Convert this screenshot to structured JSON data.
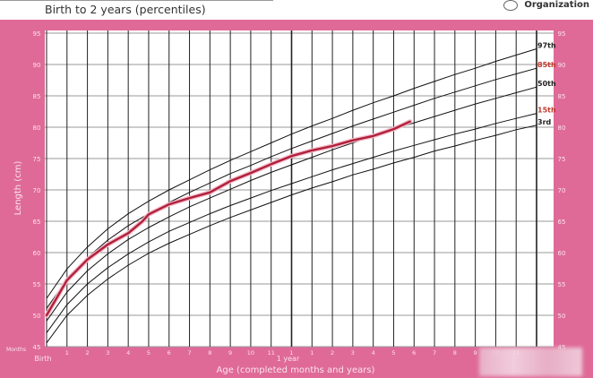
{
  "header": {
    "title": "Birth to 2 years (percentiles)",
    "organization": "Organization"
  },
  "colors": {
    "frame": "#df6a98",
    "child_line": "#b0203a",
    "percentile_line": "#111111",
    "grid_major": "#222222",
    "grid_minor": "#9a9a9a"
  },
  "chart_data": {
    "type": "line",
    "title": "Birth to 2 years (percentiles)",
    "xlabel": "Age (completed months and years)",
    "ylabel": "Length (cm)",
    "xlim": [
      0,
      24
    ],
    "ylim": [
      45,
      95
    ],
    "yticks": [
      45,
      50,
      55,
      60,
      65,
      70,
      75,
      80,
      85,
      90,
      95
    ],
    "xtick_row_label": "Months",
    "xtick_labels": [
      "1",
      "2",
      "3",
      "4",
      "5",
      "6",
      "7",
      "8",
      "9",
      "10",
      "11",
      "1",
      "1",
      "2",
      "3",
      "4",
      "5",
      "6",
      "7",
      "8",
      "9",
      "10",
      "11"
    ],
    "x_group_labels": [
      {
        "x": 0,
        "label": "Birth"
      },
      {
        "x": 12,
        "label": "1 year"
      }
    ],
    "grid": true,
    "percentile_x": [
      0,
      1,
      2,
      3,
      4,
      5,
      6,
      7,
      8,
      9,
      10,
      11,
      12,
      13,
      14,
      15,
      16,
      17,
      18,
      19,
      20,
      21,
      22,
      23,
      24
    ],
    "series": [
      {
        "name": "97th",
        "values": [
          52.7,
          57.4,
          60.9,
          63.8,
          66.2,
          68.2,
          70.0,
          71.6,
          73.2,
          74.7,
          76.1,
          77.5,
          78.9,
          80.2,
          81.4,
          82.7,
          83.9,
          85.0,
          86.2,
          87.3,
          88.4,
          89.4,
          90.5,
          91.5,
          92.5
        ]
      },
      {
        "name": "85th",
        "values": [
          51.1,
          55.7,
          59.2,
          62.0,
          64.3,
          66.2,
          68.0,
          69.6,
          71.1,
          72.6,
          73.9,
          75.3,
          76.6,
          77.8,
          79.0,
          80.2,
          81.3,
          82.4,
          83.5,
          84.6,
          85.6,
          86.6,
          87.6,
          88.5,
          89.4
        ]
      },
      {
        "name": "50th",
        "values": [
          49.1,
          53.7,
          57.1,
          59.8,
          62.1,
          64.0,
          65.7,
          67.3,
          68.7,
          70.1,
          71.5,
          72.8,
          74.0,
          75.2,
          76.4,
          77.5,
          78.6,
          79.7,
          80.7,
          81.7,
          82.7,
          83.7,
          84.6,
          85.5,
          86.4
        ]
      },
      {
        "name": "15th",
        "values": [
          47.2,
          51.7,
          55.0,
          57.6,
          59.8,
          61.7,
          63.4,
          64.8,
          66.2,
          67.5,
          68.7,
          69.9,
          71.0,
          72.1,
          73.2,
          74.2,
          75.2,
          76.2,
          77.1,
          78.0,
          78.9,
          79.7,
          80.6,
          81.4,
          82.2
        ]
      },
      {
        "name": "3rd",
        "values": [
          45.6,
          50.0,
          53.2,
          55.8,
          58.0,
          59.9,
          61.5,
          62.9,
          64.3,
          65.6,
          66.8,
          68.0,
          69.2,
          70.3,
          71.3,
          72.4,
          73.3,
          74.3,
          75.2,
          76.2,
          77.0,
          77.9,
          78.7,
          79.6,
          80.3
        ]
      }
    ],
    "child_series": {
      "x": [
        0,
        1,
        2,
        3,
        4,
        4.7,
        5,
        6,
        7,
        8,
        9,
        10,
        11,
        12,
        13,
        14,
        15,
        16,
        17,
        17.8
      ],
      "values": [
        50.0,
        55.6,
        58.9,
        61.3,
        63.1,
        65.0,
        66.1,
        67.7,
        68.7,
        69.6,
        71.4,
        72.7,
        74.1,
        75.4,
        76.3,
        77.0,
        77.9,
        78.6,
        79.7,
        80.9
      ]
    }
  }
}
